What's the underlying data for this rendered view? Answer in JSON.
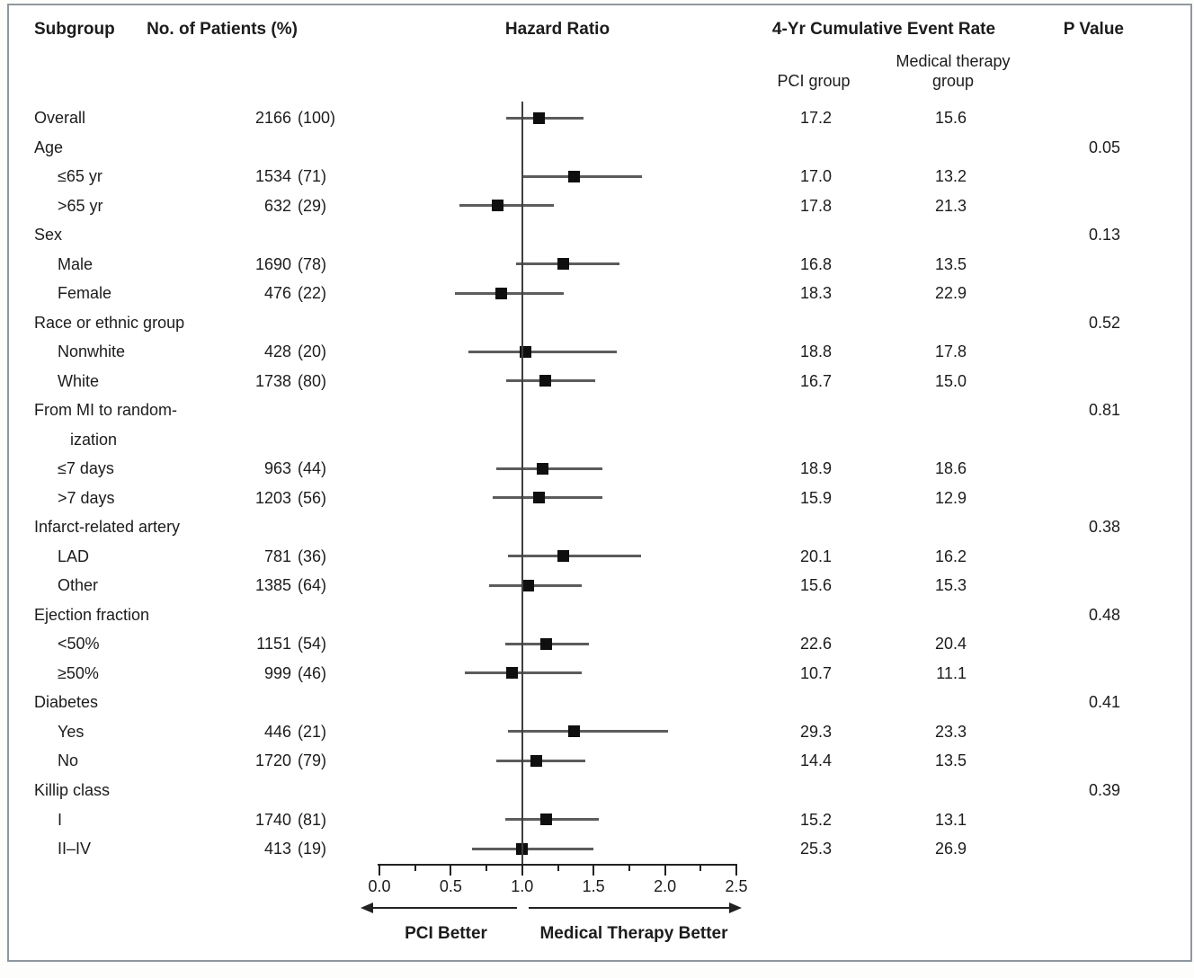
{
  "figure": {
    "headers": {
      "subgroup": "Subgroup",
      "patients": "No. of Patients (%)",
      "hazard_ratio": "Hazard Ratio",
      "event_rate": "4-Yr Cumulative Event Rate",
      "pci_group": "PCI group",
      "medical_group_line1": "Medical therapy",
      "medical_group_line2": "group",
      "p_value": "P Value"
    }
  },
  "colors": {
    "text": "#1c1c1c",
    "marker": "#0f0f0f",
    "ci_line": "#5c5c5c",
    "axis": "#222222",
    "border": "#90989e"
  },
  "chart_data": {
    "type": "forest",
    "title": "Hazard Ratio",
    "x_axis": {
      "ticks": [
        "0.0",
        "0.5",
        "1.0",
        "1.5",
        "2.0",
        "2.5"
      ],
      "range": [
        0,
        2.5
      ],
      "reference_line": 1.0,
      "minor_tick_values": [
        0.25,
        0.75,
        1.25,
        1.75,
        2.25
      ]
    },
    "direction_labels": {
      "left": "PCI Better",
      "right": "Medical Therapy Better"
    },
    "rows": [
      {
        "label": "Overall",
        "indent": 0,
        "n": "2166",
        "pct": "100",
        "hr": 1.12,
        "ci": [
          0.89,
          1.43
        ],
        "pci": "17.2",
        "med": "15.6",
        "p": null
      },
      {
        "label": "Age",
        "indent": 0,
        "n": null,
        "pct": null,
        "hr": null,
        "ci": null,
        "pci": null,
        "med": null,
        "p": "0.05"
      },
      {
        "label": "≤65 yr",
        "indent": 1,
        "n": "1534",
        "pct": "71",
        "hr": 1.36,
        "ci": [
          1.0,
          1.84
        ],
        "pci": "17.0",
        "med": "13.2",
        "p": null
      },
      {
        "label": ">65 yr",
        "indent": 1,
        "n": "632",
        "pct": "29",
        "hr": 0.83,
        "ci": [
          0.56,
          1.22
        ],
        "pci": "17.8",
        "med": "21.3",
        "p": null
      },
      {
        "label": "Sex",
        "indent": 0,
        "n": null,
        "pct": null,
        "hr": null,
        "ci": null,
        "pci": null,
        "med": null,
        "p": "0.13"
      },
      {
        "label": "Male",
        "indent": 1,
        "n": "1690",
        "pct": "78",
        "hr": 1.29,
        "ci": [
          0.96,
          1.68
        ],
        "pci": "16.8",
        "med": "13.5",
        "p": null
      },
      {
        "label": "Female",
        "indent": 1,
        "n": "476",
        "pct": "22",
        "hr": 0.85,
        "ci": [
          0.53,
          1.29
        ],
        "pci": "18.3",
        "med": "22.9",
        "p": null
      },
      {
        "label": "Race or ethnic group",
        "indent": 0,
        "n": null,
        "pct": null,
        "hr": null,
        "ci": null,
        "pci": null,
        "med": null,
        "p": "0.52"
      },
      {
        "label": "Nonwhite",
        "indent": 1,
        "n": "428",
        "pct": "20",
        "hr": 1.02,
        "ci": [
          0.62,
          1.66
        ],
        "pci": "18.8",
        "med": "17.8",
        "p": null
      },
      {
        "label": "White",
        "indent": 1,
        "n": "1738",
        "pct": "80",
        "hr": 1.16,
        "ci": [
          0.89,
          1.51
        ],
        "pci": "16.7",
        "med": "15.0",
        "p": null
      },
      {
        "label": "From MI to random-",
        "indent": 0,
        "n": null,
        "pct": null,
        "hr": null,
        "ci": null,
        "pci": null,
        "med": null,
        "p": "0.81"
      },
      {
        "label": "ization",
        "indent": 2,
        "n": null,
        "pct": null,
        "hr": null,
        "ci": null,
        "pci": null,
        "med": null,
        "p": null
      },
      {
        "label": "≤7 days",
        "indent": 1,
        "n": "963",
        "pct": "44",
        "hr": 1.14,
        "ci": [
          0.82,
          1.56
        ],
        "pci": "18.9",
        "med": "18.6",
        "p": null
      },
      {
        "label": ">7 days",
        "indent": 1,
        "n": "1203",
        "pct": "56",
        "hr": 1.12,
        "ci": [
          0.79,
          1.56
        ],
        "pci": "15.9",
        "med": "12.9",
        "p": null
      },
      {
        "label": "Infarct-related artery",
        "indent": 0,
        "n": null,
        "pct": null,
        "hr": null,
        "ci": null,
        "pci": null,
        "med": null,
        "p": "0.38"
      },
      {
        "label": "LAD",
        "indent": 1,
        "n": "781",
        "pct": "36",
        "hr": 1.29,
        "ci": [
          0.9,
          1.83
        ],
        "pci": "20.1",
        "med": "16.2",
        "p": null
      },
      {
        "label": "Other",
        "indent": 1,
        "n": "1385",
        "pct": "64",
        "hr": 1.04,
        "ci": [
          0.77,
          1.42
        ],
        "pci": "15.6",
        "med": "15.3",
        "p": null
      },
      {
        "label": "Ejection fraction",
        "indent": 0,
        "n": null,
        "pct": null,
        "hr": null,
        "ci": null,
        "pci": null,
        "med": null,
        "p": "0.48"
      },
      {
        "label": "<50%",
        "indent": 1,
        "n": "1151",
        "pct": "54",
        "hr": 1.17,
        "ci": [
          0.88,
          1.47
        ],
        "pci": "22.6",
        "med": "20.4",
        "p": null
      },
      {
        "label": "≥50%",
        "indent": 1,
        "n": "999",
        "pct": "46",
        "hr": 0.93,
        "ci": [
          0.6,
          1.42
        ],
        "pci": "10.7",
        "med": "11.1",
        "p": null
      },
      {
        "label": "Diabetes",
        "indent": 0,
        "n": null,
        "pct": null,
        "hr": null,
        "ci": null,
        "pci": null,
        "med": null,
        "p": "0.41"
      },
      {
        "label": "Yes",
        "indent": 1,
        "n": "446",
        "pct": "21",
        "hr": 1.36,
        "ci": [
          0.9,
          2.02
        ],
        "pci": "29.3",
        "med": "23.3",
        "p": null
      },
      {
        "label": "No",
        "indent": 1,
        "n": "1720",
        "pct": "79",
        "hr": 1.1,
        "ci": [
          0.82,
          1.44
        ],
        "pci": "14.4",
        "med": "13.5",
        "p": null
      },
      {
        "label": "Killip class",
        "indent": 0,
        "n": null,
        "pct": null,
        "hr": null,
        "ci": null,
        "pci": null,
        "med": null,
        "p": "0.39"
      },
      {
        "label": "I",
        "indent": 1,
        "n": "1740",
        "pct": "81",
        "hr": 1.17,
        "ci": [
          0.88,
          1.54
        ],
        "pci": "15.2",
        "med": "13.1",
        "p": null
      },
      {
        "label": "II–IV",
        "indent": 1,
        "n": "413",
        "pct": "19",
        "hr": 1.0,
        "ci": [
          0.65,
          1.5
        ],
        "pci": "25.3",
        "med": "26.9",
        "p": null
      }
    ]
  }
}
